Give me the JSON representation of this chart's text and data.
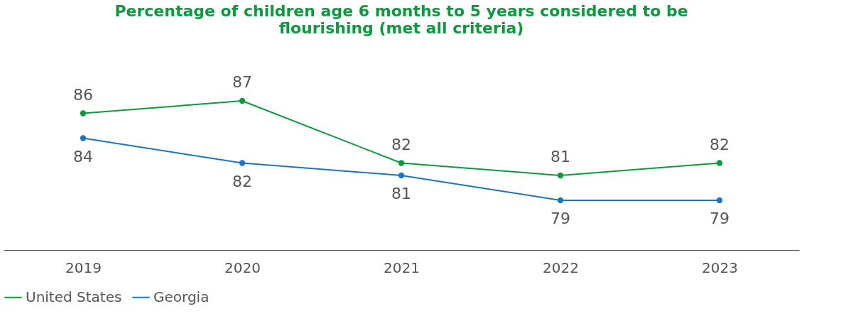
{
  "chart_data": {
    "type": "line",
    "title": "Percentage of children age 6 months to 5 years considered to be flourishing (met all criteria)",
    "categories": [
      "2019",
      "2020",
      "2021",
      "2022",
      "2023"
    ],
    "series": [
      {
        "name": "United States",
        "color": "#0b9a3e",
        "values": [
          86,
          87,
          82,
          81,
          82
        ]
      },
      {
        "name": "Georgia",
        "color": "#1a75c4",
        "values": [
          84,
          82,
          81,
          79,
          79
        ]
      }
    ],
    "data_labels": true,
    "marker": "circle",
    "line_style": "solid",
    "grid": false,
    "legend": "bottom"
  }
}
